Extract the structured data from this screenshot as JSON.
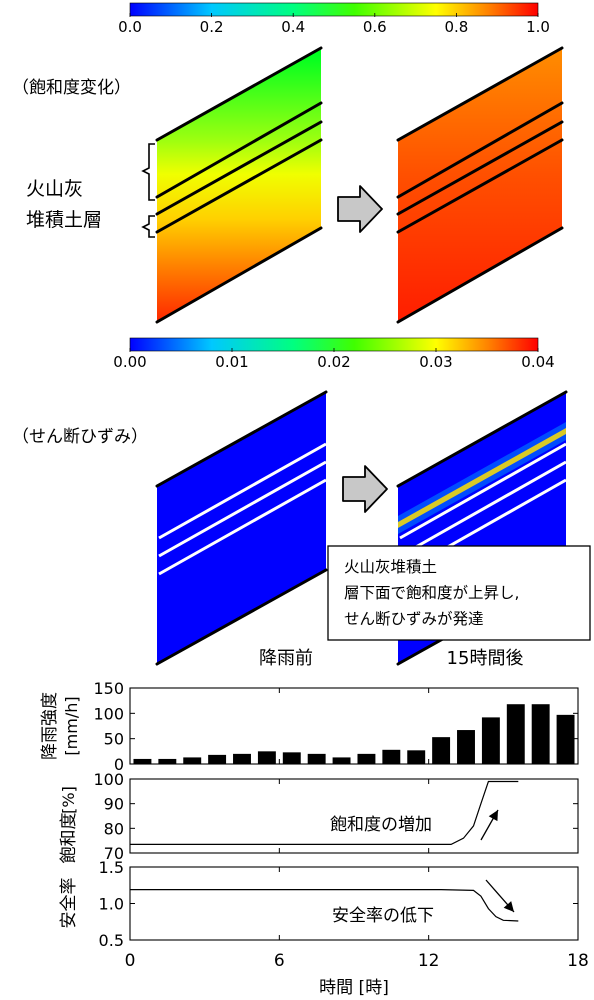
{
  "saturation_section": {
    "label": "（飽和度変化）",
    "colorbar_ticks": [
      "0.0",
      "0.2",
      "0.4",
      "0.6",
      "0.8",
      "1.0"
    ]
  },
  "strain_section": {
    "label": "（せん断ひずみ）",
    "colorbar_ticks": [
      "0.00",
      "0.01",
      "0.02",
      "0.03",
      "0.04"
    ]
  },
  "layer_label_line1": "火山灰",
  "layer_label_line2": "堆積土層",
  "callout_lines": [
    "火山灰堆積土",
    "層下面で飽和度が上昇し,",
    "せん断ひずみが発達"
  ],
  "caption_before": "降雨前",
  "caption_after": "15時間後",
  "colors": {
    "colormap": [
      "#0000ff",
      "#00c8ff",
      "#00ff80",
      "#40ff00",
      "#ffff00",
      "#ff8000",
      "#ff0000"
    ],
    "bars": "#000000",
    "arrow_fill": "#c8c8c8"
  },
  "chart_data": [
    {
      "type": "bar",
      "ylabel_line1": "降雨強度",
      "ylabel_line2": "[mm/h]",
      "ylim": [
        0,
        150
      ],
      "yticks": [
        "0",
        "50",
        "100",
        "150"
      ],
      "x": [
        1,
        2,
        3,
        4,
        5,
        6,
        7,
        8,
        9,
        10,
        11,
        12,
        13,
        14,
        15,
        16,
        17,
        18
      ],
      "values": [
        10,
        10,
        13,
        18,
        20,
        25,
        23,
        20,
        13,
        20,
        28,
        27,
        53,
        67,
        92,
        118,
        118,
        97
      ]
    },
    {
      "type": "line",
      "ylabel_line1": "[%]",
      "ylabel_line2": "飽和度",
      "ylim": [
        70,
        100
      ],
      "yticks": [
        "70",
        "80",
        "90",
        "100"
      ],
      "annotation": "飽和度の増加",
      "x": [
        0,
        12.9,
        13.4,
        13.8,
        14.1,
        14.4,
        15.6
      ],
      "y": [
        73.5,
        73.5,
        76,
        81,
        90,
        99,
        99
      ]
    },
    {
      "type": "line",
      "ylabel_line1": "安全率",
      "ylim": [
        0.5,
        1.5
      ],
      "yticks": [
        "0.5",
        "1.0",
        "1.5"
      ],
      "annotation": "安全率の低下",
      "xlim": [
        0,
        18
      ],
      "xticks": [
        "0",
        "6",
        "12",
        "18"
      ],
      "xlabel": "時間 [時]",
      "x": [
        0,
        12.5,
        13.8,
        14.1,
        14.4,
        14.7,
        15.0,
        15.6
      ],
      "y": [
        1.19,
        1.19,
        1.18,
        1.1,
        0.93,
        0.82,
        0.77,
        0.76
      ]
    }
  ]
}
